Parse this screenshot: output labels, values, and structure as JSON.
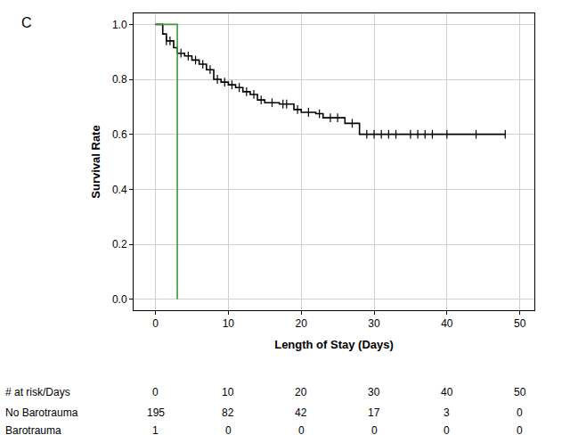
{
  "chart_data": {
    "type": "line",
    "panel_label": "C",
    "x_label": "Length of Stay (Days)",
    "y_label": "Survival Rate",
    "xlim": [
      -3,
      52
    ],
    "xticks": [
      0,
      10,
      20,
      30,
      40,
      50
    ],
    "ylim": [
      -0.04,
      1.04
    ],
    "yticks": [
      {
        "value": 0,
        "label": "0.0"
      },
      {
        "value": 0.2,
        "label": "0.2"
      },
      {
        "value": 0.4,
        "label": "0.4"
      },
      {
        "value": 0.6,
        "label": "0.6"
      },
      {
        "value": 0.8,
        "label": "0.8"
      },
      {
        "value": 1,
        "label": "1.0"
      }
    ],
    "grid": true,
    "series": [
      {
        "name": "No Barotrauma",
        "color": "#000000",
        "line_style": "step",
        "marker": "line-ns-open",
        "x": [
          0,
          1,
          1.5,
          2.5,
          3,
          4,
          5,
          6,
          7,
          8,
          9,
          10,
          11,
          12,
          13,
          14,
          15,
          17,
          19,
          20,
          22,
          23,
          26,
          28,
          48
        ],
        "values": [
          1.0,
          0.965,
          0.94,
          0.915,
          0.895,
          0.885,
          0.87,
          0.855,
          0.835,
          0.8,
          0.79,
          0.78,
          0.77,
          0.755,
          0.745,
          0.725,
          0.715,
          0.71,
          0.69,
          0.68,
          0.675,
          0.66,
          0.64,
          0.6,
          0.6
        ],
        "censored_x": [
          1.5,
          2,
          3.5,
          4.5,
          5.5,
          6.5,
          7.5,
          8.5,
          9.5,
          10.5,
          11.5,
          12.5,
          13.5,
          14.5,
          16,
          17.5,
          18,
          19.5,
          21,
          22.5,
          24,
          25,
          27,
          29,
          30,
          31,
          32,
          33,
          35,
          36,
          37,
          38,
          40,
          44,
          48
        ],
        "censored_values": [
          0.94,
          0.94,
          0.895,
          0.885,
          0.87,
          0.855,
          0.835,
          0.8,
          0.79,
          0.78,
          0.77,
          0.755,
          0.745,
          0.725,
          0.715,
          0.71,
          0.71,
          0.69,
          0.68,
          0.675,
          0.66,
          0.66,
          0.64,
          0.6,
          0.6,
          0.6,
          0.6,
          0.6,
          0.6,
          0.6,
          0.6,
          0.6,
          0.6,
          0.6,
          0.6
        ]
      },
      {
        "name": "Barotrauma",
        "color": "#3a9a3a",
        "line_style": "step",
        "x": [
          0,
          3
        ],
        "values": [
          1.0,
          0.0
        ]
      }
    ],
    "risk_table": {
      "header": "# at risk/Days",
      "days": [
        0,
        10,
        20,
        30,
        40,
        50
      ],
      "rows": [
        {
          "name": "No Barotrauma",
          "values": [
            195,
            82,
            42,
            17,
            3,
            0
          ]
        },
        {
          "name": "Barotrauma",
          "values": [
            1,
            0,
            0,
            0,
            0,
            0
          ]
        }
      ]
    }
  }
}
